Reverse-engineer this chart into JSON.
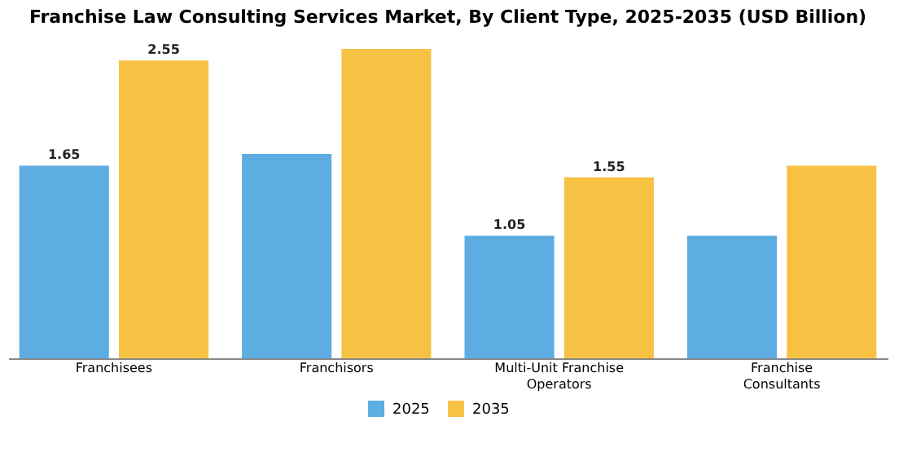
{
  "chart_data": {
    "type": "bar",
    "title": "Franchise Law Consulting Services Market, By Client Type, 2025-2035 (USD Billion)",
    "categories": [
      "Franchisees",
      "Franchisors",
      "Multi-Unit Franchise Operators",
      "Franchise Consultants"
    ],
    "series": [
      {
        "name": "2025",
        "color": "#5dade2",
        "values": [
          1.65,
          1.75,
          1.05,
          1.05
        ],
        "value_labels": [
          "1.65",
          null,
          "1.05",
          null
        ]
      },
      {
        "name": "2035",
        "color": "#f7c244",
        "values": [
          2.55,
          2.65,
          1.55,
          1.65
        ],
        "value_labels": [
          "2.55",
          null,
          "1.55",
          null
        ]
      }
    ],
    "tick_labels": "x",
    "legend": "bottom",
    "grid": false
  }
}
